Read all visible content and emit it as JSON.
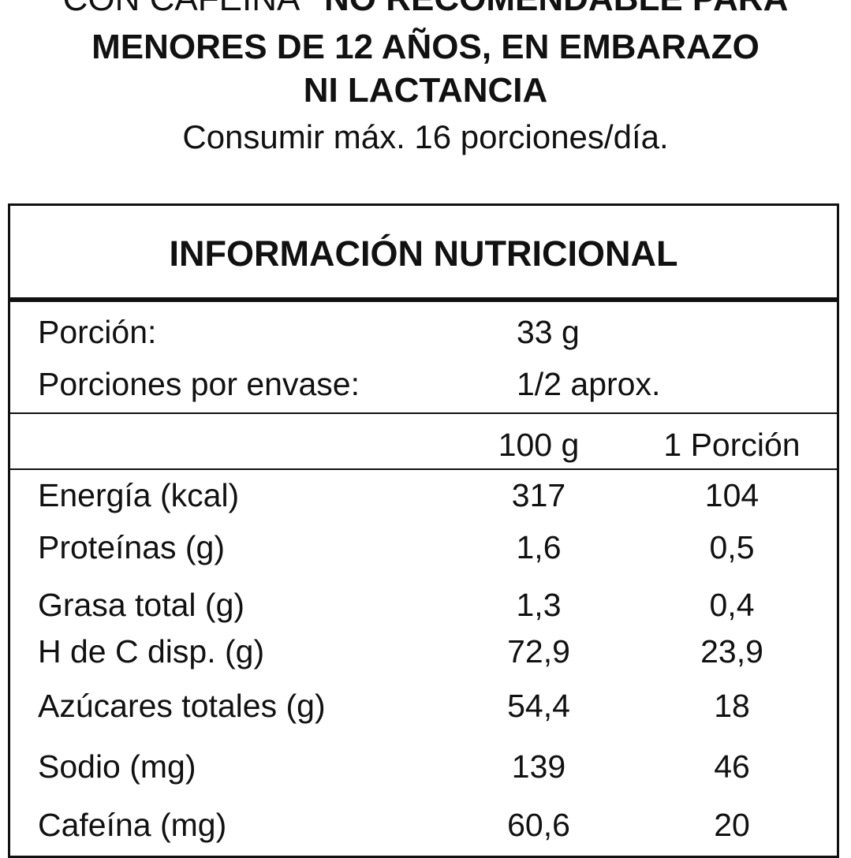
{
  "warning": {
    "line1_prefix": "CON CAFEÍNA",
    "line1_bold": "\"NO RECOMENDABLE PARA",
    "line2": "MENORES DE 12 AÑOS, EN EMBARAZO",
    "line3": "NI LACTANCIA",
    "dose": "Consumir máx. 16 porciones/día."
  },
  "table": {
    "title": "INFORMACIÓN NUTRICIONAL",
    "serving": {
      "label": "Porción:",
      "value": "33 g"
    },
    "servings_per_pack": {
      "label": "Porciones por envase:",
      "value": "1/2 aprox."
    },
    "headers": {
      "per_100": "100 g",
      "per_portion": "1 Porción"
    },
    "rows": [
      {
        "label": "Energía (kcal)",
        "per_100": "317",
        "per_portion": "104"
      },
      {
        "label": "Proteínas (g)",
        "per_100": "1,6",
        "per_portion": "0,5"
      },
      {
        "label": "Grasa total (g)",
        "per_100": "1,3",
        "per_portion": "0,4"
      },
      {
        "label": "H de C disp. (g)",
        "per_100": "72,9",
        "per_portion": "23,9"
      },
      {
        "label": "Azúcares totales (g)",
        "per_100": "54,4",
        "per_portion": "18"
      },
      {
        "label": "Sodio (mg)",
        "per_100": "139",
        "per_portion": "46"
      },
      {
        "label": "Cafeína (mg)",
        "per_100": "60,6",
        "per_portion": "20"
      }
    ]
  }
}
